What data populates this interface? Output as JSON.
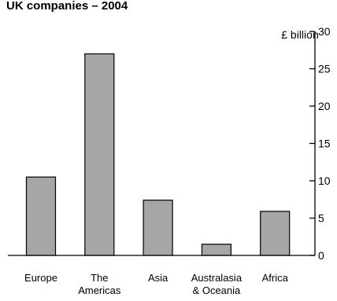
{
  "chart_data": {
    "type": "bar",
    "title": "UK companies – 2004",
    "ylabel": "£ billion",
    "xlabel": "",
    "categories": [
      [
        "Europe"
      ],
      [
        "The",
        "Americas"
      ],
      [
        "Asia"
      ],
      [
        "Australasia",
        "& Oceania"
      ],
      [
        "Africa"
      ]
    ],
    "values": [
      10.5,
      27.0,
      7.4,
      1.5,
      5.9
    ],
    "ylim": [
      0,
      30
    ],
    "yticks": [
      0,
      5,
      10,
      15,
      20,
      25,
      30
    ],
    "axis_side": "right",
    "grid": false,
    "bar_color": "#a6a6a6",
    "bar_edge_color": "#000000"
  }
}
